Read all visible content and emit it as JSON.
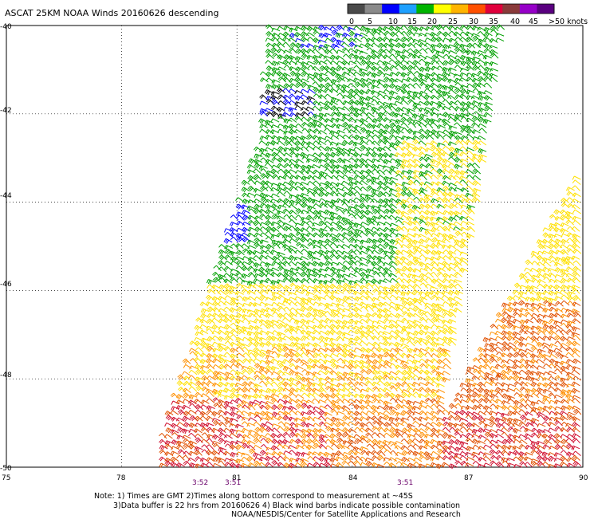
{
  "title": "ASCAT 25KM NOAA Winds 20160626 descending",
  "legend": {
    "labels": [
      "0",
      "5",
      "10",
      "15",
      "20",
      "25",
      "30",
      "35",
      "40",
      "45",
      ">50 knots"
    ],
    "colors": [
      "#4a4a4a",
      "#8a8a8a",
      "#0000ff",
      "#1ea0ff",
      "#00b400",
      "#ffff00",
      "#ffb400",
      "#ff5000",
      "#e0003c",
      "#8a3a3a",
      "#9600c8",
      "#5a0080"
    ]
  },
  "map": {
    "lat_labels": [
      "-40",
      "-42",
      "-44",
      "-46",
      "-48",
      "-50"
    ],
    "lon_labels": [
      "75",
      "78",
      "81",
      "84",
      "87",
      "90"
    ],
    "time_labels": [
      "3:52",
      "3:51",
      "3:51"
    ],
    "barb_colors": {
      "green": "#00a000",
      "yellow": "#ffe000",
      "orange": "#ff9000",
      "red_orange": "#e05000",
      "red": "#d01030",
      "blue": "#0000ff",
      "black": "#000000"
    }
  },
  "notes": {
    "line1": "Note: 1) Times are GMT 2)Times along bottom correspond to measurement at ~45S",
    "line2": "3)Data buffer is 22 hrs from 20160626 4) Black wind barbs indicate possible contamination",
    "line3": "NOAA/NESDIS/Center for Satellite Applications and Research"
  }
}
